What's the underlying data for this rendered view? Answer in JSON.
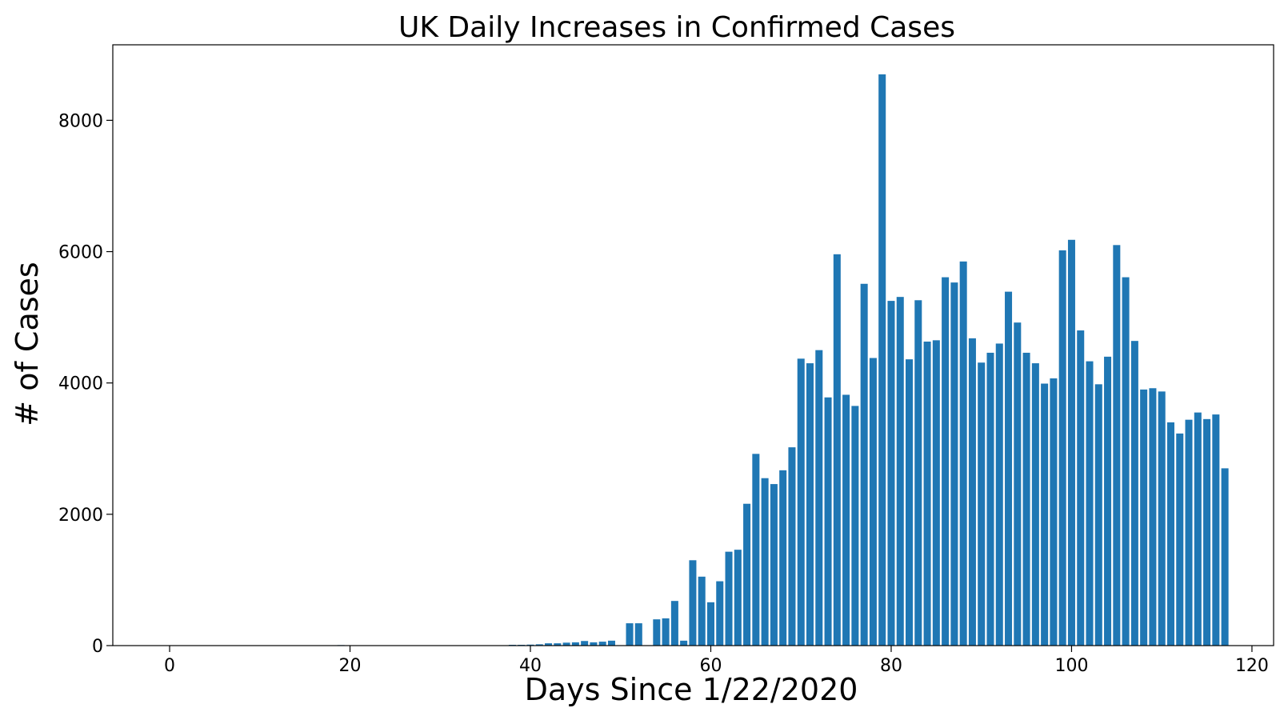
{
  "chart_data": {
    "type": "bar",
    "title": "UK Daily Increases in Confirmed Cases",
    "xlabel": "Days Since 1/22/2020",
    "ylabel": "# of Cases",
    "xlim": [
      -6.3,
      122.4
    ],
    "ylim": [
      0,
      9150
    ],
    "xticks": [
      0,
      20,
      40,
      60,
      80,
      100,
      120
    ],
    "yticks": [
      0,
      2000,
      4000,
      6000,
      8000
    ],
    "grid": false,
    "legend": "none",
    "bar_color": "#1f77b4",
    "x": [
      0,
      1,
      2,
      3,
      4,
      5,
      6,
      7,
      8,
      9,
      10,
      11,
      12,
      13,
      14,
      15,
      16,
      17,
      18,
      19,
      20,
      21,
      22,
      23,
      24,
      25,
      26,
      27,
      28,
      29,
      30,
      31,
      32,
      33,
      34,
      35,
      36,
      37,
      38,
      39,
      40,
      41,
      42,
      43,
      44,
      45,
      46,
      47,
      48,
      49,
      50,
      51,
      52,
      53,
      54,
      55,
      56,
      57,
      58,
      59,
      60,
      61,
      62,
      63,
      64,
      65,
      66,
      67,
      68,
      69,
      70,
      71,
      72,
      73,
      74,
      75,
      76,
      77,
      78,
      79,
      80,
      81,
      82,
      83,
      84,
      85,
      86,
      87,
      88,
      89,
      90,
      91,
      92,
      93,
      94,
      95,
      96,
      97,
      98,
      99,
      100,
      101,
      102,
      103,
      104,
      105,
      106,
      107,
      108,
      109,
      110,
      111,
      112,
      113,
      114,
      115,
      116,
      117
    ],
    "values": [
      0,
      0,
      0,
      0,
      0,
      0,
      0,
      0,
      0,
      2,
      0,
      0,
      0,
      0,
      0,
      0,
      0,
      0,
      0,
      8,
      0,
      0,
      0,
      0,
      0,
      0,
      0,
      0,
      0,
      0,
      0,
      0,
      0,
      4,
      0,
      0,
      0,
      5,
      12,
      12,
      15,
      20,
      35,
      35,
      45,
      50,
      70,
      50,
      60,
      75,
      0,
      340,
      340,
      0,
      400,
      415,
      680,
      75,
      1300,
      1050,
      660,
      980,
      1430,
      1460,
      2160,
      2920,
      2550,
      2460,
      2670,
      3020,
      4370,
      4300,
      4500,
      3780,
      5960,
      3820,
      3650,
      5510,
      4380,
      8700,
      5250,
      5310,
      4360,
      5260,
      4630,
      4650,
      5610,
      5530,
      5850,
      4680,
      4310,
      4460,
      4600,
      5390,
      4920,
      4460,
      4300,
      3990,
      4070,
      6020,
      6180,
      4800,
      4330,
      3980,
      4400,
      6100,
      5610,
      4640,
      3900,
      3920,
      3870,
      3400,
      3230,
      3440,
      3550,
      3450,
      3520,
      2700
    ]
  }
}
